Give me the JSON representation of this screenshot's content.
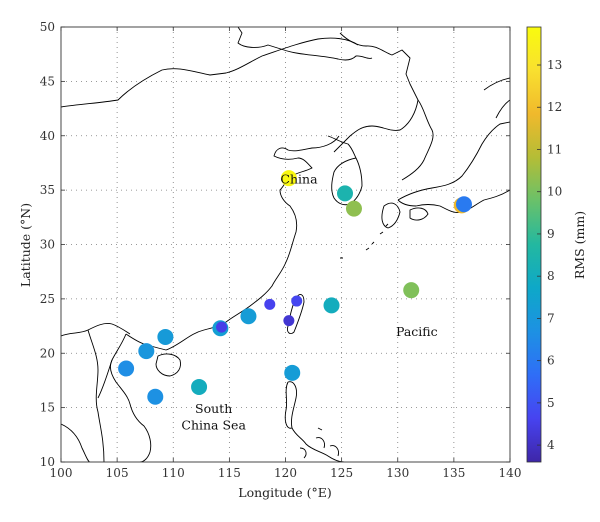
{
  "chart_data": {
    "type": "scatter",
    "xlabel": "Longitude (°E)",
    "ylabel": "Latitude (°N)",
    "xlim": [
      100,
      140
    ],
    "ylim": [
      10,
      50
    ],
    "xticks": [
      100,
      105,
      110,
      115,
      120,
      125,
      130,
      135,
      140
    ],
    "yticks": [
      10,
      15,
      20,
      25,
      30,
      35,
      40,
      45,
      50
    ],
    "grid": true,
    "colorbar": {
      "label": "RMS (mm)",
      "range": [
        3.6,
        13.9
      ],
      "ticks": [
        4,
        5,
        6,
        7,
        8,
        9,
        10,
        11,
        12,
        13
      ],
      "colormap": [
        "#3e26a8",
        "#4743f0",
        "#2f6ef7",
        "#1d91e3",
        "#0ea8c8",
        "#23b8a0",
        "#69c16a",
        "#b4bd36",
        "#f0b92c",
        "#f9e02f",
        "#f9fb0e"
      ]
    },
    "annotations": [
      {
        "text": "China",
        "lon": 121.2,
        "lat": 35.6
      },
      {
        "text": "Pacific",
        "lon": 131.7,
        "lat": 21.6
      },
      {
        "text": "South",
        "lon": 113.6,
        "lat": 14.5
      },
      {
        "text": "China Sea",
        "lon": 113.6,
        "lat": 13.0
      }
    ],
    "points": [
      {
        "lon": 120.3,
        "lat": 36.1,
        "rms": 13.8
      },
      {
        "lon": 125.3,
        "lat": 34.7,
        "rms": 8.4
      },
      {
        "lon": 126.1,
        "lat": 33.3,
        "rms": 10.3
      },
      {
        "lon": 135.7,
        "lat": 33.6,
        "rms": 11.8
      },
      {
        "lon": 135.9,
        "lat": 33.7,
        "rms": 6.0
      },
      {
        "lon": 131.2,
        "lat": 25.8,
        "rms": 10.1
      },
      {
        "lon": 124.1,
        "lat": 24.4,
        "rms": 8.0
      },
      {
        "lon": 121.0,
        "lat": 24.8,
        "rms": 4.7
      },
      {
        "lon": 118.6,
        "lat": 24.5,
        "rms": 4.6
      },
      {
        "lon": 120.3,
        "lat": 23.0,
        "rms": 4.2
      },
      {
        "lon": 116.7,
        "lat": 23.4,
        "rms": 7.2
      },
      {
        "lon": 114.2,
        "lat": 22.3,
        "rms": 7.3
      },
      {
        "lon": 114.3,
        "lat": 22.4,
        "rms": 4.5
      },
      {
        "lon": 109.3,
        "lat": 21.5,
        "rms": 7.1
      },
      {
        "lon": 107.6,
        "lat": 20.2,
        "rms": 6.9
      },
      {
        "lon": 105.8,
        "lat": 18.6,
        "rms": 6.6
      },
      {
        "lon": 112.3,
        "lat": 16.9,
        "rms": 8.0
      },
      {
        "lon": 120.6,
        "lat": 18.2,
        "rms": 7.2
      },
      {
        "lon": 108.4,
        "lat": 16.0,
        "rms": 6.7
      }
    ]
  }
}
